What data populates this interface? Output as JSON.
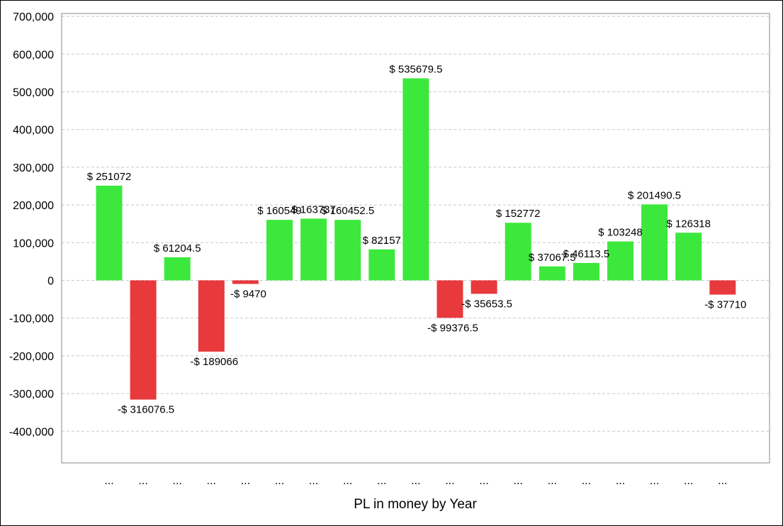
{
  "chart_data": {
    "type": "bar",
    "xlabel": "PL in money by Year",
    "ylabel": "",
    "ylim": [
      -480000,
      705000
    ],
    "yticks": [
      700000,
      600000,
      500000,
      400000,
      300000,
      200000,
      100000,
      0,
      -100000,
      -200000,
      -300000,
      -400000
    ],
    "ytick_labels": [
      "700,000",
      "600,000",
      "500,000",
      "400,000",
      "300,000",
      "200,000",
      "100,000",
      "0",
      "-100,000",
      "-200,000",
      "-300,000",
      "-400,000"
    ],
    "grid": true,
    "categories": [
      "...",
      "...",
      "...",
      "...",
      "...",
      "...",
      "...",
      "...",
      "...",
      "...",
      "...",
      "...",
      "...",
      "...",
      "...",
      "...",
      "...",
      "...",
      "..."
    ],
    "values": [
      251072,
      -316076.5,
      61204.5,
      -189066,
      -9470,
      160549,
      163737,
      160452.5,
      82157,
      535679.5,
      -99376.5,
      -35653.5,
      152772,
      37067.5,
      46113.5,
      103248,
      201490.5,
      126318,
      -37710
    ],
    "data_labels": [
      "$ 251072",
      "-$ 316076.5",
      "$ 61204.5",
      "-$ 189066",
      "-$ 9470",
      "$ 160549",
      "$ 163737",
      "$ 160452.5",
      "$ 82157",
      "$ 535679.5",
      "-$ 99376.5",
      "-$ 35653.5",
      "$ 152772",
      "$ 37067.5",
      "$ 46113.5",
      "$ 103248",
      "$ 201490.5",
      "$ 126318",
      "-$ 37710"
    ],
    "colors": {
      "positive": "#3de83d",
      "negative": "#e8393d"
    }
  }
}
